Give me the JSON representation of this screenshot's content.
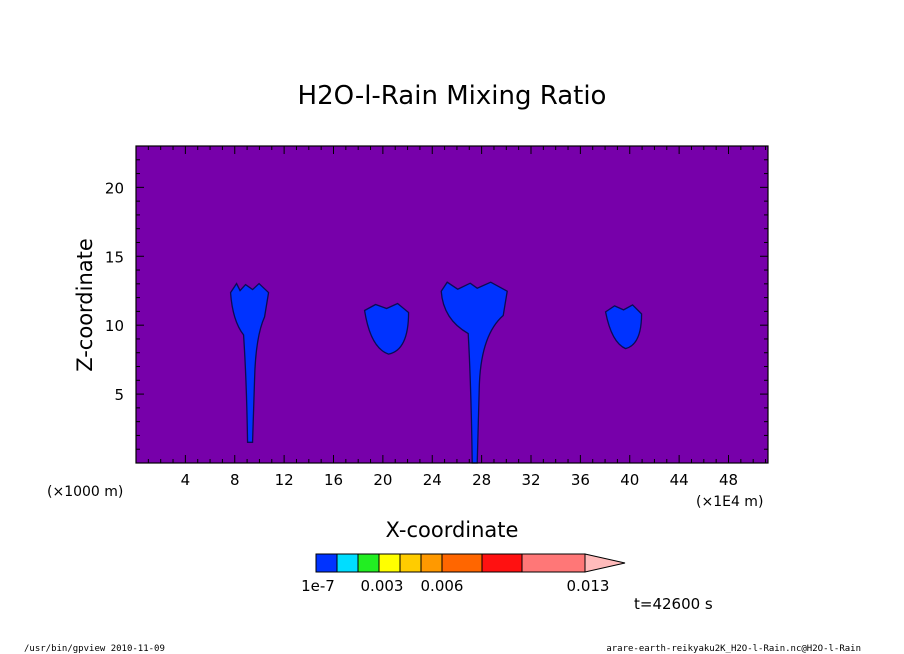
{
  "chart_data": {
    "type": "heatmap",
    "title": "H2O-l-Rain Mixing Ratio",
    "xlabel": "X-coordinate",
    "ylabel": "Z-coordinate",
    "x_unit_left": "(×1000 m)",
    "x_unit_right": "(×1E4 m)",
    "xlim": [
      0,
      51.2
    ],
    "ylim": [
      0,
      23
    ],
    "x_ticks": [
      4,
      8,
      12,
      16,
      20,
      24,
      28,
      32,
      36,
      40,
      44,
      48
    ],
    "y_ticks": [
      5,
      10,
      15,
      20
    ],
    "background_color": "#7700aa",
    "legend": {
      "colors": [
        "#0033ff",
        "#00ddff",
        "#22ee22",
        "#ffff00",
        "#ffcc00",
        "#ff9900",
        "#ff6600",
        "#ff1111",
        "#ff7777",
        "#ffbbbb"
      ],
      "labels": [
        "1e-7",
        "0.003",
        "0.006",
        "0.013"
      ]
    },
    "time_label": "t=42600 s",
    "features": [
      {
        "x_center": 9.2,
        "z_base": 1.5,
        "z_top": 12.8,
        "color": "#0033ff"
      },
      {
        "x_center": 20.3,
        "z_base": 7.9,
        "z_top": 11.5,
        "color": "#0033ff"
      },
      {
        "x_center": 27.4,
        "z_base": 0.0,
        "z_top": 12.9,
        "color": "#0033ff"
      },
      {
        "x_center": 39.5,
        "z_base": 8.3,
        "z_top": 11.4,
        "color": "#0033ff"
      }
    ]
  },
  "footer": {
    "left": "/usr/bin/gpview  2010-11-09",
    "right": "arare-earth-reikyaku2K_H2O-l-Rain.nc@H2O-l-Rain"
  }
}
